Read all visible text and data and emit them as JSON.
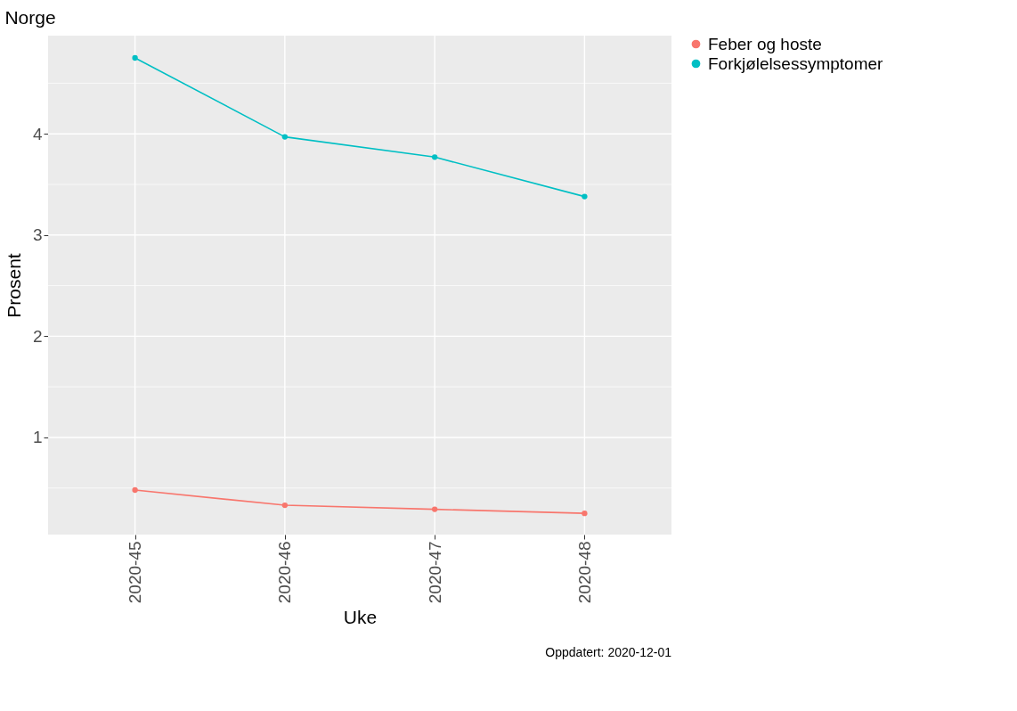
{
  "chart_data": {
    "type": "line",
    "title": "Norge",
    "xlabel": "Uke",
    "ylabel": "Prosent",
    "annotations": [
      "Oppdatert: 2020-12-01"
    ],
    "categories": [
      "2020-45",
      "2020-46",
      "2020-47",
      "2020-48"
    ],
    "series": [
      {
        "name": "Feber og hoste",
        "color": "#f8766d",
        "values": [
          0.48,
          0.33,
          0.29,
          0.25
        ]
      },
      {
        "name": "Forkjølelsessymptomer",
        "color": "#00bfc4",
        "values": [
          4.75,
          3.97,
          3.77,
          3.38
        ]
      }
    ],
    "ylim": [
      0.04,
      4.97
    ],
    "yticks": [
      {
        "value": 0.5,
        "label": null
      },
      1,
      {
        "value": 1.5,
        "label": null
      },
      2,
      {
        "value": 2.5,
        "label": null
      },
      3,
      {
        "value": 3.5,
        "label": null
      },
      4,
      {
        "value": 4.5,
        "label": null
      }
    ],
    "grid": true,
    "legend": "right",
    "marker": "circle",
    "line_style": "solid"
  }
}
